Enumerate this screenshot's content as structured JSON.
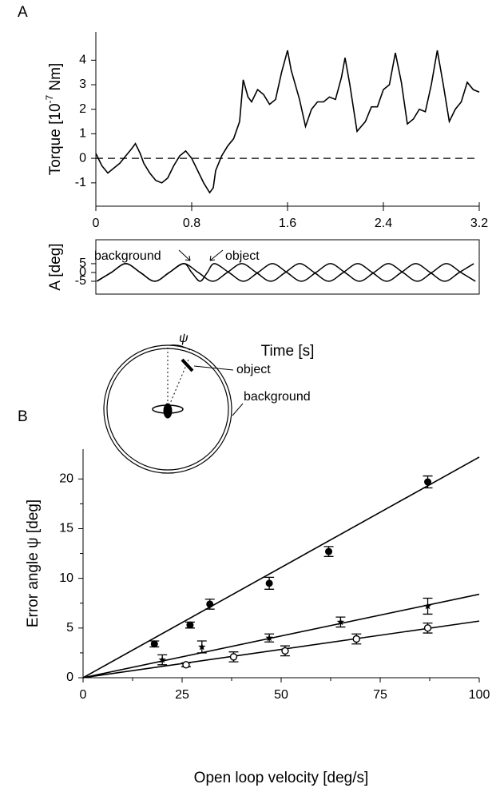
{
  "chart_data": [
    {
      "type": "line",
      "panel_label": "A",
      "ylabel": [
        "Torque  [10",
        "-7",
        " Nm]"
      ],
      "xlim": [
        0,
        3.2
      ],
      "xticks": [
        0,
        0.8,
        1.6,
        2.4,
        3.2
      ],
      "ylim": [
        -1.95,
        5.15
      ],
      "yticks": [
        -1,
        0,
        1,
        2,
        3,
        4
      ],
      "reference_line": {
        "y": 0,
        "style": "dashed"
      },
      "color": "#000000",
      "x": [
        0,
        0.05,
        0.1,
        0.15,
        0.2,
        0.25,
        0.3,
        0.33,
        0.37,
        0.4,
        0.45,
        0.5,
        0.55,
        0.6,
        0.65,
        0.7,
        0.75,
        0.8,
        0.85,
        0.9,
        0.95,
        0.98,
        1.0,
        1.05,
        1.1,
        1.15,
        1.2,
        1.23,
        1.27,
        1.3,
        1.35,
        1.4,
        1.45,
        1.5,
        1.55,
        1.6,
        1.63,
        1.7,
        1.75,
        1.8,
        1.85,
        1.9,
        1.95,
        2.0,
        2.05,
        2.08,
        2.12,
        2.18,
        2.25,
        2.3,
        2.35,
        2.4,
        2.45,
        2.5,
        2.55,
        2.6,
        2.65,
        2.7,
        2.75,
        2.8,
        2.85,
        2.9,
        2.95,
        3.0,
        3.05,
        3.1,
        3.15,
        3.2
      ],
      "values": [
        0.2,
        -0.3,
        -0.6,
        -0.4,
        -0.2,
        0.1,
        0.4,
        0.6,
        0.2,
        -0.2,
        -0.6,
        -0.9,
        -1.0,
        -0.8,
        -0.3,
        0.1,
        0.3,
        0,
        -0.5,
        -1.0,
        -1.4,
        -1.2,
        -0.5,
        0.1,
        0.5,
        0.8,
        1.5,
        3.2,
        2.5,
        2.3,
        2.8,
        2.6,
        2.2,
        2.4,
        3.5,
        4.4,
        3.6,
        2.4,
        1.3,
        2.0,
        2.3,
        2.3,
        2.5,
        2.4,
        3.3,
        4.1,
        3.0,
        1.1,
        1.5,
        2.1,
        2.1,
        2.8,
        3.0,
        4.3,
        3.1,
        1.4,
        1.6,
        2.0,
        1.9,
        3.0,
        4.4,
        3.0,
        1.5,
        2.0,
        2.3,
        3.1,
        2.8,
        2.7
      ]
    },
    {
      "type": "sine",
      "ylabel": "A  [deg]",
      "xlabel": "Time  [s]",
      "xlim": [
        0,
        3.2
      ],
      "ylim": [
        -12.3,
        18.6
      ],
      "yticks": [
        -5,
        0,
        5
      ],
      "annotations": [
        "background",
        "object"
      ],
      "series": [
        {
          "name": "background",
          "color": "#000000",
          "x": [
            0.008,
            0.129,
            0.25,
            0.371,
            0.492,
            0.613,
            0.734,
            0.855,
            0.976,
            1.097,
            1.218,
            1.339,
            1.46,
            1.581,
            1.702,
            1.823,
            1.944,
            2.065,
            2.186,
            2.307,
            2.428,
            2.549,
            2.67,
            2.791,
            2.912,
            3.033,
            3.154
          ],
          "values": [
            -5,
            0,
            5,
            0,
            -5,
            0,
            5,
            0,
            -5,
            0,
            5,
            0,
            -5,
            0,
            5,
            0,
            -5,
            0,
            5,
            0,
            -5,
            0,
            5,
            0,
            -5,
            0,
            5
          ]
        },
        {
          "name": "object",
          "color": "#000000",
          "x": [
            0.008,
            0.129,
            0.25,
            0.371,
            0.492,
            0.613,
            0.734,
            0.8,
            0.87,
            0.93,
            0.99,
            1.111,
            1.232,
            1.353,
            1.474,
            1.595,
            1.716,
            1.837,
            1.958,
            2.079,
            2.2,
            2.321,
            2.442,
            2.563,
            2.684,
            2.805,
            2.926,
            3.047,
            3.168
          ],
          "values": [
            -5,
            0,
            5,
            0,
            -5,
            0,
            5,
            0,
            -5,
            0,
            5,
            0,
            -5,
            0,
            5,
            0,
            -5,
            0,
            5,
            0,
            -5,
            0,
            5,
            0,
            -5,
            0,
            5,
            0,
            -5
          ]
        }
      ]
    },
    {
      "type": "scatter",
      "panel_label": "B",
      "ylabel": "Error angle ψ  [deg]",
      "xlabel": "Open loop velocity   [deg/s]",
      "xlim": [
        0,
        100
      ],
      "xticks": [
        0,
        25,
        50,
        75,
        100
      ],
      "xticks_minor": [
        12.5,
        37.5,
        62.5,
        87.5
      ],
      "ylim": [
        0,
        23
      ],
      "yticks": [
        0,
        5,
        10,
        15,
        20
      ],
      "yticks_minor": [
        2.5,
        7.5,
        12.5,
        17.5
      ],
      "annotations": [
        "ψ",
        "object",
        "background"
      ],
      "series": [
        {
          "marker": "filled-circle",
          "color": "#000000",
          "x": [
            18,
            27,
            32,
            47,
            62,
            87
          ],
          "values": [
            3.4,
            5.3,
            7.4,
            9.5,
            12.7,
            19.7
          ],
          "errors": [
            0.3,
            0.3,
            0.5,
            0.6,
            0.5,
            0.6
          ],
          "fit": {
            "x": [
              0,
              100
            ],
            "y": [
              0,
              22.2
            ]
          }
        },
        {
          "marker": "star",
          "color": "#000000",
          "x": [
            20,
            30,
            47,
            65,
            87
          ],
          "values": [
            1.8,
            3.1,
            4.0,
            5.6,
            7.2
          ],
          "errors": [
            0.5,
            0.6,
            0.4,
            0.5,
            0.8
          ],
          "fit": {
            "x": [
              0,
              100
            ],
            "y": [
              0,
              8.4
            ]
          }
        },
        {
          "marker": "open-circle",
          "color": "#000000",
          "x": [
            26,
            38,
            51,
            69,
            87
          ],
          "values": [
            1.3,
            2.1,
            2.7,
            3.9,
            5.0
          ],
          "errors": [
            0.2,
            0.5,
            0.5,
            0.5,
            0.5
          ],
          "fit": {
            "x": [
              0,
              100
            ],
            "y": [
              0,
              5.7
            ]
          }
        }
      ]
    }
  ]
}
